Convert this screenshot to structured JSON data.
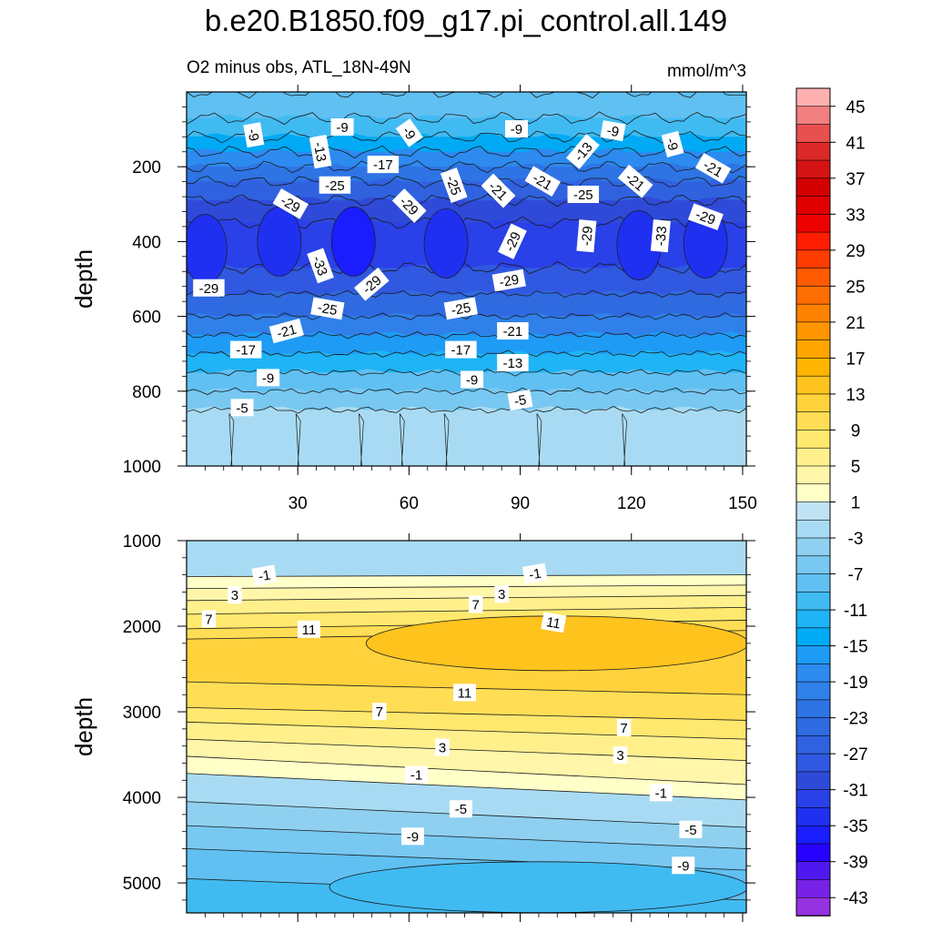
{
  "title": "b.e20.B1850.f09_g17.pi_control.all.149",
  "subtitle": "O2 minus obs, ATL_18N-49N",
  "units": "mmol/m^3",
  "chart_data": [
    {
      "type": "contour",
      "panel": "upper",
      "ylabel": "depth",
      "xlim": [
        0,
        151
      ],
      "ylim": [
        1000,
        0
      ],
      "x_ticks": [
        30,
        60,
        90,
        120,
        150
      ],
      "y_ticks": [
        200,
        400,
        600,
        800,
        1000
      ],
      "bands": [
        {
          "from": 0,
          "to": 70,
          "value": -9
        },
        {
          "from": 70,
          "to": 120,
          "value": -11
        },
        {
          "from": 120,
          "to": 160,
          "value": -15
        },
        {
          "from": 160,
          "to": 200,
          "value": -19
        },
        {
          "from": 200,
          "to": 240,
          "value": -23
        },
        {
          "from": 240,
          "to": 290,
          "value": -27
        },
        {
          "from": 290,
          "to": 350,
          "value": -31
        },
        {
          "from": 350,
          "to": 470,
          "value": -33
        },
        {
          "from": 470,
          "to": 540,
          "value": -29
        },
        {
          "from": 540,
          "to": 600,
          "value": -25
        },
        {
          "from": 600,
          "to": 650,
          "value": -21
        },
        {
          "from": 650,
          "to": 700,
          "value": -17
        },
        {
          "from": 700,
          "to": 750,
          "value": -13
        },
        {
          "from": 750,
          "to": 800,
          "value": -9
        },
        {
          "from": 800,
          "to": 850,
          "value": -7
        },
        {
          "from": 850,
          "to": 1000,
          "value": -3
        }
      ],
      "cores": [
        {
          "x": 45,
          "y": 400,
          "value": -37
        },
        {
          "x": 25,
          "y": 400,
          "value": -35
        },
        {
          "x": 70,
          "y": 405,
          "value": -35
        },
        {
          "x": 122,
          "y": 410,
          "value": -35
        },
        {
          "x": 140,
          "y": 405,
          "value": -35
        },
        {
          "x": 5,
          "y": 420,
          "value": -35
        }
      ],
      "contour_labels": [
        {
          "x": 18,
          "y": 115,
          "text": "-9",
          "angle": 80
        },
        {
          "x": 42,
          "y": 95,
          "text": "-9",
          "angle": 0
        },
        {
          "x": 60,
          "y": 110,
          "text": "-9",
          "angle": 55
        },
        {
          "x": 89,
          "y": 100,
          "text": "-9",
          "angle": 0
        },
        {
          "x": 115,
          "y": 105,
          "text": "-9",
          "angle": 10
        },
        {
          "x": 131,
          "y": 140,
          "text": "-9",
          "angle": 75
        },
        {
          "x": 36,
          "y": 160,
          "text": "-13",
          "angle": 80
        },
        {
          "x": 107,
          "y": 160,
          "text": "-13",
          "angle": -50
        },
        {
          "x": 53,
          "y": 195,
          "text": "-17",
          "angle": 0
        },
        {
          "x": 40,
          "y": 250,
          "text": "-25",
          "angle": 0
        },
        {
          "x": 72,
          "y": 250,
          "text": "-25",
          "angle": 70
        },
        {
          "x": 107,
          "y": 275,
          "text": "-25",
          "angle": 0
        },
        {
          "x": 84,
          "y": 265,
          "text": "-21",
          "angle": 45
        },
        {
          "x": 96,
          "y": 240,
          "text": "-21",
          "angle": 30
        },
        {
          "x": 121,
          "y": 240,
          "text": "-21",
          "angle": 40
        },
        {
          "x": 142,
          "y": 205,
          "text": "-21",
          "angle": 30
        },
        {
          "x": 28,
          "y": 300,
          "text": "-29",
          "angle": 30
        },
        {
          "x": 60,
          "y": 305,
          "text": "-29",
          "angle": 45
        },
        {
          "x": 88,
          "y": 400,
          "text": "-29",
          "angle": -65
        },
        {
          "x": 108,
          "y": 385,
          "text": "-29",
          "angle": -85
        },
        {
          "x": 140,
          "y": 335,
          "text": "-29",
          "angle": 20
        },
        {
          "x": 128,
          "y": 385,
          "text": "-33",
          "angle": -85
        },
        {
          "x": 36,
          "y": 465,
          "text": "-33",
          "angle": 70
        },
        {
          "x": 6,
          "y": 525,
          "text": "-29",
          "angle": 0
        },
        {
          "x": 50,
          "y": 515,
          "text": "-29",
          "angle": -40
        },
        {
          "x": 87,
          "y": 505,
          "text": "-29",
          "angle": -10
        },
        {
          "x": 38,
          "y": 580,
          "text": "-25",
          "angle": 10
        },
        {
          "x": 74,
          "y": 580,
          "text": "-25",
          "angle": -10
        },
        {
          "x": 27,
          "y": 640,
          "text": "-21",
          "angle": -15
        },
        {
          "x": 88,
          "y": 640,
          "text": "-21",
          "angle": 0
        },
        {
          "x": 16,
          "y": 690,
          "text": "-17",
          "angle": 0
        },
        {
          "x": 74,
          "y": 690,
          "text": "-17",
          "angle": 0
        },
        {
          "x": 88,
          "y": 725,
          "text": "-13",
          "angle": 0
        },
        {
          "x": 22,
          "y": 765,
          "text": "-9",
          "angle": 0
        },
        {
          "x": 77,
          "y": 770,
          "text": "-9",
          "angle": 0
        },
        {
          "x": 15,
          "y": 845,
          "text": "-5",
          "angle": 0
        },
        {
          "x": 90,
          "y": 825,
          "text": "-5",
          "angle": -10
        }
      ]
    },
    {
      "type": "contour",
      "panel": "lower",
      "ylabel": "depth",
      "xlim": [
        0,
        151
      ],
      "ylim": [
        5350,
        1000
      ],
      "x_ticks": [
        30,
        60,
        90,
        120,
        150
      ],
      "y_ticks": [
        1000,
        2000,
        3000,
        4000,
        5000
      ],
      "bands": [
        {
          "depth_left": 1000,
          "depth_right": 1000,
          "value": -3
        },
        {
          "depth_left": 1420,
          "depth_right": 1400,
          "value": 1
        },
        {
          "depth_left": 1560,
          "depth_right": 1520,
          "value": 3
        },
        {
          "depth_left": 1700,
          "depth_right": 1640,
          "value": 5
        },
        {
          "depth_left": 1860,
          "depth_right": 1780,
          "value": 7
        },
        {
          "depth_left": 2030,
          "depth_right": 1930,
          "value": 9
        },
        {
          "depth_left": 2150,
          "depth_right": 2050,
          "value": 11
        },
        {
          "depth_left": 2650,
          "depth_right": 2800,
          "value": 9
        },
        {
          "depth_left": 2950,
          "depth_right": 3100,
          "value": 7
        },
        {
          "depth_left": 3120,
          "depth_right": 3320,
          "value": 5
        },
        {
          "depth_left": 3320,
          "depth_right": 3570,
          "value": 3
        },
        {
          "depth_left": 3520,
          "depth_right": 3850,
          "value": 1
        },
        {
          "depth_left": 3720,
          "depth_right": 4030,
          "value": -3
        },
        {
          "depth_left": 4050,
          "depth_right": 4350,
          "value": -5
        },
        {
          "depth_left": 4330,
          "depth_right": 4600,
          "value": -7
        },
        {
          "depth_left": 4600,
          "depth_right": 4850,
          "value": -9
        },
        {
          "depth_left": 4950,
          "depth_right": 5200,
          "value": -11
        }
      ],
      "cores": [
        {
          "x": 100,
          "y": 2200,
          "value": 13
        }
      ],
      "contour_labels": [
        {
          "x": 21,
          "y": 1410,
          "text": "-1",
          "angle": -10
        },
        {
          "x": 94,
          "y": 1390,
          "text": "-1",
          "angle": -10
        },
        {
          "x": 13,
          "y": 1640,
          "text": "3",
          "angle": 0
        },
        {
          "x": 85,
          "y": 1630,
          "text": "3",
          "angle": 0
        },
        {
          "x": 78,
          "y": 1750,
          "text": "7",
          "angle": 0
        },
        {
          "x": 6,
          "y": 1920,
          "text": "7",
          "angle": 0
        },
        {
          "x": 33,
          "y": 2040,
          "text": "11",
          "angle": 0
        },
        {
          "x": 99,
          "y": 1960,
          "text": "11",
          "angle": 10
        },
        {
          "x": 75,
          "y": 2780,
          "text": "11",
          "angle": 0
        },
        {
          "x": 52,
          "y": 3000,
          "text": "7",
          "angle": 0
        },
        {
          "x": 118,
          "y": 3190,
          "text": "7",
          "angle": 0
        },
        {
          "x": 69,
          "y": 3420,
          "text": "3",
          "angle": 0
        },
        {
          "x": 117,
          "y": 3510,
          "text": "3",
          "angle": 0
        },
        {
          "x": 62,
          "y": 3740,
          "text": "-1",
          "angle": 0
        },
        {
          "x": 128,
          "y": 3950,
          "text": "-1",
          "angle": 0
        },
        {
          "x": 74,
          "y": 4140,
          "text": "-5",
          "angle": 0
        },
        {
          "x": 136,
          "y": 4380,
          "text": "-5",
          "angle": 0
        },
        {
          "x": 61,
          "y": 4460,
          "text": "-9",
          "angle": 0
        },
        {
          "x": 134,
          "y": 4800,
          "text": "-9",
          "angle": 0
        }
      ]
    }
  ],
  "colorbar": {
    "levels": [
      45,
      43,
      41,
      39,
      37,
      35,
      33,
      31,
      29,
      27,
      25,
      23,
      21,
      19,
      17,
      15,
      13,
      11,
      9,
      7,
      5,
      3,
      1,
      -1,
      -3,
      -5,
      -7,
      -9,
      -11,
      -13,
      -15,
      -17,
      -19,
      -21,
      -23,
      -25,
      -27,
      -29,
      -31,
      -33,
      -35,
      -37,
      -39,
      -41,
      -43
    ],
    "labels": [
      "45",
      "41",
      "37",
      "33",
      "29",
      "25",
      "21",
      "17",
      "13",
      "9",
      "5",
      "1",
      "-3",
      "-7",
      "-11",
      "-15",
      "-19",
      "-23",
      "-27",
      "-31",
      "-35",
      "-39",
      "-43"
    ],
    "colors": [
      "#ffb0b0",
      "#f28080",
      "#e85050",
      "#dc2828",
      "#d41414",
      "#d20000",
      "#e00000",
      "#ee0000",
      "#ff1e00",
      "#ff3c00",
      "#ff5a00",
      "#ff6e00",
      "#ff8200",
      "#ff9600",
      "#ffa500",
      "#ffb400",
      "#ffc31e",
      "#ffd23c",
      "#ffde55",
      "#ffe86e",
      "#fff08c",
      "#fff6aa",
      "#ffffc8",
      "#bfe3f5",
      "#a8dbf3",
      "#8fd0f0",
      "#78c8f2",
      "#60c0f2",
      "#40bbf2",
      "#1eb4f5",
      "#00aaf5",
      "#1e9bf5",
      "#2d8aef",
      "#3080ea",
      "#2e74e4",
      "#2f6ae0",
      "#3062e0",
      "#3058e0",
      "#2f4ad8",
      "#2a40e8",
      "#2030f0",
      "#1a1eff",
      "#2800ff",
      "#5018f0",
      "#7822e8",
      "#9632e0"
    ]
  }
}
